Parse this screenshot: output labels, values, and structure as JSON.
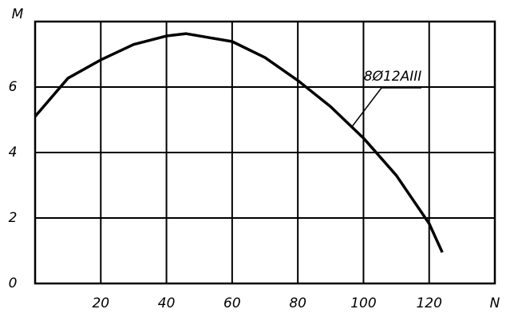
{
  "chart_data": {
    "type": "line",
    "x_label": "N",
    "y_label": "M",
    "x": [
      0,
      10,
      20,
      30,
      40,
      46,
      60,
      70,
      80,
      90,
      100,
      110,
      120,
      124
    ],
    "series": [
      {
        "name": "8Ø12AIII",
        "color": "#000000",
        "values": [
          5.1,
          6.27,
          6.83,
          7.3,
          7.56,
          7.63,
          7.39,
          6.9,
          6.2,
          5.4,
          4.44,
          3.3,
          1.83,
          0.95
        ]
      }
    ],
    "xlim": [
      0,
      140
    ],
    "ylim": [
      0,
      8
    ],
    "xticks": [
      20,
      40,
      60,
      80,
      100,
      120
    ],
    "yticks": [
      0,
      2,
      4,
      6
    ],
    "grid": true
  }
}
